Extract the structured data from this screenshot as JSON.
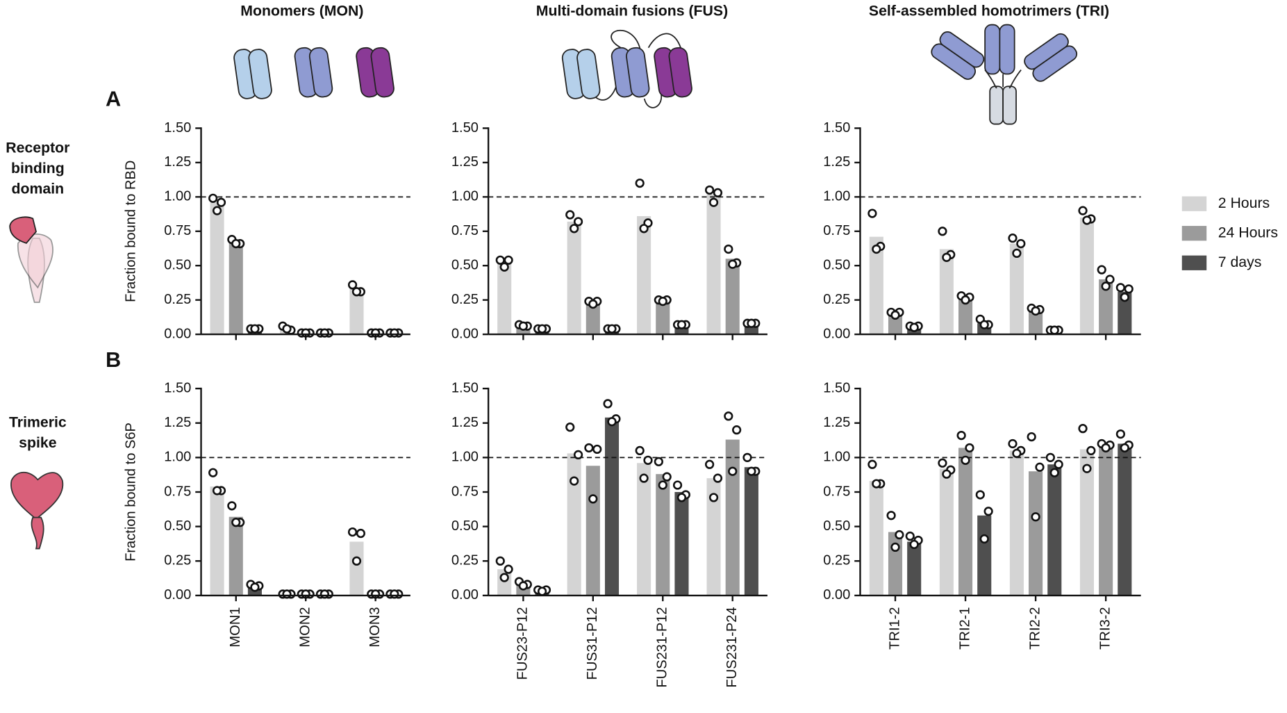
{
  "headers": [
    "Monomers (MON)",
    "Multi-domain fusions (FUS)",
    "Self-assembled homotrimers (TRI)"
  ],
  "row_labels": [
    [
      "Receptor",
      "binding",
      "domain"
    ],
    [
      "Trimeric",
      "spike"
    ]
  ],
  "panels": [
    "A",
    "B"
  ],
  "chart_data": [
    {
      "type": "bar",
      "ylabel": "Fraction bound to RBD",
      "categories": [
        null,
        null,
        null
      ],
      "series": [
        {
          "name": "2 Hours",
          "color": "#d4d4d4",
          "values": [
            0.96,
            0.04,
            0.33
          ],
          "points": [
            [
              0.99,
              0.96,
              0.9
            ],
            [
              0.06,
              0.03,
              0.04
            ],
            [
              0.36,
              0.31,
              0.31
            ]
          ]
        },
        {
          "name": "24 Hours",
          "color": "#9b9b9b",
          "values": [
            0.67,
            0.01,
            0.01
          ],
          "points": [
            [
              0.69,
              0.66,
              0.66
            ],
            [
              0.01,
              0.01,
              0.01
            ],
            [
              0.01,
              0.01,
              0.01
            ]
          ]
        },
        {
          "name": "7 days",
          "color": "#4f4f4f",
          "values": [
            0.04,
            0.01,
            0.01
          ],
          "points": [
            [
              0.04,
              0.04,
              0.04
            ],
            [
              0.01,
              0.01,
              0.01
            ],
            [
              0.01,
              0.01,
              0.01
            ]
          ]
        }
      ],
      "ylim": [
        0,
        1.5
      ],
      "yticks": [
        {
          "value": 0,
          "label": "0.00"
        },
        {
          "value": 0.25,
          "label": "0.25"
        },
        {
          "value": 0.5,
          "label": "0.50"
        },
        {
          "value": 0.75,
          "label": "0.75"
        },
        {
          "value": 1,
          "label": "1.00"
        },
        {
          "value": 1.25,
          "label": "1.25"
        },
        {
          "value": 1.5,
          "label": "1.50"
        }
      ],
      "reference_line": 1
    },
    {
      "type": "bar",
      "categories": [
        null,
        null,
        null,
        null
      ],
      "series": [
        {
          "color": "#d4d4d4",
          "values": [
            0.52,
            0.82,
            0.86,
            1.02
          ],
          "points": [
            [
              0.54,
              0.54,
              0.49
            ],
            [
              0.87,
              0.82,
              0.77
            ],
            [
              1.1,
              0.81,
              0.77
            ],
            [
              1.05,
              1.03,
              0.96
            ]
          ]
        },
        {
          "color": "#9b9b9b",
          "values": [
            0.06,
            0.23,
            0.25,
            0.55
          ],
          "points": [
            [
              0.07,
              0.06,
              0.06
            ],
            [
              0.24,
              0.24,
              0.22
            ],
            [
              0.25,
              0.25,
              0.24
            ],
            [
              0.62,
              0.52,
              0.51
            ]
          ]
        },
        {
          "color": "#4f4f4f",
          "values": [
            0.04,
            0.04,
            0.07,
            0.08
          ],
          "points": [
            [
              0.04,
              0.04,
              0.04
            ],
            [
              0.04,
              0.04,
              0.04
            ],
            [
              0.07,
              0.07,
              0.07
            ],
            [
              0.08,
              0.08,
              0.08
            ]
          ]
        }
      ],
      "ylim": [
        0,
        1.5
      ],
      "yticks": [
        {
          "value": 0,
          "label": "0.00"
        },
        {
          "value": 0.25,
          "label": "0.25"
        },
        {
          "value": 0.5,
          "label": "0.50"
        },
        {
          "value": 0.75,
          "label": "0.75"
        },
        {
          "value": 1,
          "label": "1.00"
        },
        {
          "value": 1.25,
          "label": "1.25"
        },
        {
          "value": 1.5,
          "label": "1.50"
        }
      ],
      "reference_line": 1
    },
    {
      "type": "bar",
      "categories": [
        null,
        null,
        null,
        null
      ],
      "series": [
        {
          "color": "#d4d4d4",
          "values": [
            0.71,
            0.62,
            0.66,
            0.85
          ],
          "points": [
            [
              0.88,
              0.64,
              0.62
            ],
            [
              0.75,
              0.58,
              0.56
            ],
            [
              0.7,
              0.66,
              0.59
            ],
            [
              0.9,
              0.84,
              0.83
            ]
          ]
        },
        {
          "color": "#9b9b9b",
          "values": [
            0.15,
            0.27,
            0.18,
            0.4
          ],
          "points": [
            [
              0.16,
              0.16,
              0.14
            ],
            [
              0.28,
              0.27,
              0.25
            ],
            [
              0.19,
              0.18,
              0.17
            ],
            [
              0.47,
              0.4,
              0.35
            ]
          ]
        },
        {
          "color": "#4f4f4f",
          "values": [
            0.06,
            0.08,
            0.03,
            0.31
          ],
          "points": [
            [
              0.06,
              0.06,
              0.05
            ],
            [
              0.11,
              0.07,
              0.07
            ],
            [
              0.03,
              0.03,
              0.03
            ],
            [
              0.34,
              0.33,
              0.27
            ]
          ]
        }
      ],
      "ylim": [
        0,
        1.5
      ],
      "yticks": [
        {
          "value": 0,
          "label": "0.00"
        },
        {
          "value": 0.25,
          "label": "0.25"
        },
        {
          "value": 0.5,
          "label": "0.50"
        },
        {
          "value": 0.75,
          "label": "0.75"
        },
        {
          "value": 1,
          "label": "1.00"
        },
        {
          "value": 1.25,
          "label": "1.25"
        },
        {
          "value": 1.5,
          "label": "1.50"
        }
      ],
      "reference_line": 1
    },
    {
      "type": "bar",
      "ylabel": "Fraction bound to S6P",
      "categories": [
        "MON1",
        "MON2",
        "MON3"
      ],
      "series": [
        {
          "color": "#d4d4d4",
          "values": [
            0.79,
            0.01,
            0.39
          ],
          "points": [
            [
              0.89,
              0.76,
              0.76
            ],
            [
              0.01,
              0.01,
              0.01
            ],
            [
              0.46,
              0.45,
              0.25
            ]
          ]
        },
        {
          "color": "#9b9b9b",
          "values": [
            0.57,
            0.01,
            0.01
          ],
          "points": [
            [
              0.65,
              0.53,
              0.53
            ],
            [
              0.01,
              0.01,
              0.01
            ],
            [
              0.01,
              0.01,
              0.01
            ]
          ]
        },
        {
          "color": "#4f4f4f",
          "values": [
            0.07,
            0.01,
            0.01
          ],
          "points": [
            [
              0.08,
              0.07,
              0.06
            ],
            [
              0.01,
              0.01,
              0.01
            ],
            [
              0.01,
              0.01,
              0.01
            ]
          ]
        }
      ],
      "ylim": [
        0,
        1.5
      ],
      "yticks": [
        {
          "value": 0,
          "label": "0.00"
        },
        {
          "value": 0.25,
          "label": "0.25"
        },
        {
          "value": 0.5,
          "label": "0.50"
        },
        {
          "value": 0.75,
          "label": "0.75"
        },
        {
          "value": 1,
          "label": "1.00"
        },
        {
          "value": 1.25,
          "label": "1.25"
        },
        {
          "value": 1.5,
          "label": "1.50"
        }
      ],
      "reference_line": 1
    },
    {
      "type": "bar",
      "categories": [
        "FUS23-P12",
        "FUS31-P12",
        "FUS231-P12",
        "FUS231-P24"
      ],
      "series": [
        {
          "color": "#d4d4d4",
          "values": [
            0.19,
            1.03,
            0.96,
            0.85
          ],
          "points": [
            [
              0.25,
              0.19,
              0.13
            ],
            [
              1.22,
              1.02,
              0.83
            ],
            [
              1.05,
              0.98,
              0.85
            ],
            [
              0.95,
              0.85,
              0.71
            ]
          ]
        },
        {
          "color": "#9b9b9b",
          "values": [
            0.08,
            0.94,
            0.88,
            1.13
          ],
          "points": [
            [
              0.1,
              0.08,
              0.07
            ],
            [
              1.07,
              1.06,
              0.7
            ],
            [
              0.97,
              0.86,
              0.8
            ],
            [
              1.3,
              1.2,
              0.9
            ]
          ]
        },
        {
          "color": "#4f4f4f",
          "values": [
            0.04,
            1.29,
            0.75,
            0.93
          ],
          "points": [
            [
              0.04,
              0.04,
              0.03
            ],
            [
              1.39,
              1.28,
              1.26
            ],
            [
              0.8,
              0.73,
              0.71
            ],
            [
              1,
              0.9,
              0.9
            ]
          ]
        }
      ],
      "ylim": [
        0,
        1.5
      ],
      "yticks": [
        {
          "value": 0,
          "label": "0.00"
        },
        {
          "value": 0.25,
          "label": "0.25"
        },
        {
          "value": 0.5,
          "label": "0.50"
        },
        {
          "value": 0.75,
          "label": "0.75"
        },
        {
          "value": 1,
          "label": "1.00"
        },
        {
          "value": 1.25,
          "label": "1.25"
        },
        {
          "value": 1.5,
          "label": "1.50"
        }
      ],
      "reference_line": 1
    },
    {
      "type": "bar",
      "categories": [
        "TRI1-2",
        "TRI2-1",
        "TRI2-2",
        "TRI3-2"
      ],
      "series": [
        {
          "color": "#d4d4d4",
          "values": [
            0.83,
            0.92,
            1.05,
            1.06
          ],
          "points": [
            [
              0.95,
              0.81,
              0.81
            ],
            [
              0.96,
              0.91,
              0.88
            ],
            [
              1.1,
              1.05,
              1.03
            ],
            [
              1.21,
              1.05,
              0.92
            ]
          ]
        },
        {
          "color": "#9b9b9b",
          "values": [
            0.46,
            1.07,
            0.9,
            1.09
          ],
          "points": [
            [
              0.58,
              0.44,
              0.35
            ],
            [
              1.16,
              1.07,
              0.98
            ],
            [
              1.15,
              0.93,
              0.57
            ],
            [
              1.1,
              1.09,
              1.07
            ]
          ]
        },
        {
          "color": "#4f4f4f",
          "values": [
            0.39,
            0.58,
            0.95,
            1.1
          ],
          "points": [
            [
              0.43,
              0.4,
              0.37
            ],
            [
              0.73,
              0.61,
              0.41
            ],
            [
              1,
              0.95,
              0.89
            ],
            [
              1.17,
              1.09,
              1.07
            ]
          ]
        }
      ],
      "ylim": [
        0,
        1.5
      ],
      "yticks": [
        {
          "value": 0,
          "label": "0.00"
        },
        {
          "value": 0.25,
          "label": "0.25"
        },
        {
          "value": 0.5,
          "label": "0.50"
        },
        {
          "value": 0.75,
          "label": "0.75"
        },
        {
          "value": 1,
          "label": "1.00"
        },
        {
          "value": 1.25,
          "label": "1.25"
        },
        {
          "value": 1.5,
          "label": "1.50"
        }
      ],
      "reference_line": 1
    }
  ]
}
